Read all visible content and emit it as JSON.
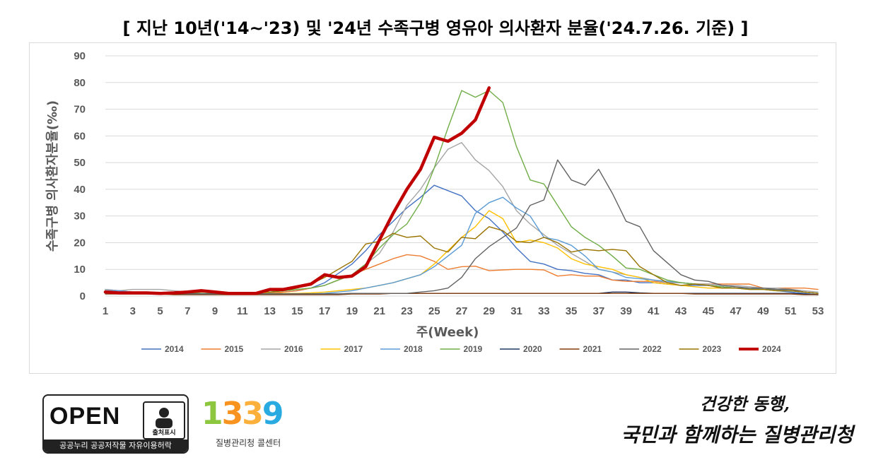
{
  "page": {
    "title": "[ 지난 10년('14~'23) 및 '24년 수족구병 영유아 의사환자 분율('24.7.26. 기준) ]"
  },
  "chart_data": {
    "type": "line",
    "title": "[ 지난 10년('14~'23) 및 '24년 수족구병 영유아 의사환자 분율('24.7.26. 기준) ]",
    "xlabel": "주(Week)",
    "ylabel": "수족구병 의사환자분율(‰)",
    "ylim": [
      0,
      90
    ],
    "yticks": [
      0,
      10,
      20,
      30,
      40,
      50,
      60,
      70,
      80,
      90
    ],
    "xticks": [
      1,
      3,
      5,
      7,
      9,
      11,
      13,
      15,
      17,
      19,
      21,
      23,
      25,
      27,
      29,
      31,
      33,
      35,
      37,
      39,
      41,
      43,
      45,
      47,
      49,
      51,
      53
    ],
    "xlim": [
      1,
      53
    ],
    "grid": true,
    "legend_position": "bottom",
    "series": [
      {
        "name": "2014",
        "color": "#4472C4",
        "width": 1.4,
        "values": [
          2.5,
          2,
          1.5,
          1.5,
          1,
          1,
          1,
          1,
          1,
          0.8,
          0.8,
          1,
          1.2,
          1.5,
          2,
          3,
          5,
          8.5,
          12,
          17,
          23,
          28,
          33,
          37,
          41.5,
          39.5,
          37.5,
          32,
          29,
          24,
          18,
          13,
          12,
          10,
          9.5,
          8.5,
          8,
          6,
          6,
          5,
          5,
          4.5,
          4,
          4,
          4,
          3.5,
          3,
          3,
          2.5,
          2,
          1.5,
          1,
          0.5
        ]
      },
      {
        "name": "2015",
        "color": "#ED7D31",
        "width": 1.4,
        "values": [
          2,
          1.5,
          1.5,
          1.5,
          1,
          1,
          1,
          1,
          1,
          0.8,
          0.8,
          1,
          1,
          1.5,
          2,
          3,
          4,
          6,
          8,
          10,
          12,
          14,
          15.5,
          15,
          13,
          10,
          11,
          11.2,
          9.5,
          9.8,
          10,
          10,
          9.8,
          7.5,
          8,
          7.5,
          7.5,
          6,
          5.5,
          5.5,
          5.5,
          5,
          5,
          4.5,
          4.5,
          4.5,
          4.5,
          4.5,
          3,
          3,
          3,
          3,
          2.5
        ]
      },
      {
        "name": "2016",
        "color": "#A5A5A5",
        "width": 1.4,
        "values": [
          2.5,
          2,
          2.5,
          2.5,
          2.5,
          2,
          1.5,
          1,
          1,
          1,
          1,
          1.2,
          1.5,
          2,
          2.5,
          3,
          4,
          6,
          8,
          12,
          16,
          24,
          34,
          40,
          48,
          55,
          57.5,
          51,
          47,
          41,
          32,
          27,
          23,
          19,
          16,
          13,
          10,
          9,
          8,
          7,
          6,
          5,
          5,
          4.5,
          4.5,
          4,
          4,
          3.5,
          3,
          3,
          2.5,
          2,
          1.5
        ]
      },
      {
        "name": "2017",
        "color": "#FFC000",
        "width": 1.4,
        "values": [
          1.5,
          1.5,
          1.5,
          1.5,
          1.2,
          1,
          1,
          1,
          1,
          0.8,
          0.8,
          0.8,
          1,
          1,
          1,
          1.2,
          1.5,
          2,
          2.5,
          3,
          4,
          5,
          6.5,
          8,
          12,
          17,
          22,
          26,
          32,
          29,
          20,
          21,
          20,
          18,
          14,
          12,
          11,
          10,
          8,
          7,
          5,
          4.5,
          4,
          3.5,
          3,
          3,
          3,
          2.5,
          2.5,
          2,
          2,
          1.5,
          1
        ]
      },
      {
        "name": "2018",
        "color": "#5B9BD5",
        "width": 1.4,
        "values": [
          2,
          2,
          1.5,
          1.5,
          1.2,
          1,
          1,
          1,
          1,
          0.8,
          0.8,
          0.8,
          0.8,
          0.8,
          0.8,
          0.8,
          1,
          1.5,
          2,
          3,
          4,
          5,
          6.5,
          8,
          11,
          15,
          19,
          31,
          35,
          37,
          33,
          30,
          22,
          21,
          19,
          15,
          10,
          9,
          7,
          6.5,
          6,
          5.5,
          5,
          4.5,
          4,
          3.5,
          3,
          3,
          2.5,
          2.5,
          2,
          1.5,
          1
        ]
      },
      {
        "name": "2019",
        "color": "#70AD47",
        "width": 1.4,
        "values": [
          1.5,
          1.5,
          1.5,
          1.5,
          1.2,
          1,
          1,
          1,
          1,
          1,
          1,
          1.2,
          1.5,
          2,
          2.5,
          3,
          4,
          6,
          8,
          12,
          18,
          23,
          27,
          35,
          48,
          63,
          77,
          74.5,
          77,
          72.5,
          56,
          43.5,
          42,
          34,
          26,
          22,
          19,
          15,
          10.5,
          10,
          8,
          6,
          5,
          4.5,
          4,
          3.5,
          3,
          2.5,
          2.5,
          2,
          2,
          1.5,
          1
        ]
      },
      {
        "name": "2020",
        "color": "#1F3864",
        "width": 1.4,
        "values": [
          1.5,
          1,
          1,
          1,
          1,
          0.8,
          0.8,
          0.8,
          0.8,
          0.8,
          0.8,
          0.8,
          0.8,
          0.8,
          0.8,
          0.8,
          0.8,
          0.8,
          1,
          1,
          1,
          1,
          1,
          1,
          1,
          1,
          1,
          1,
          1,
          1,
          1,
          1,
          1,
          1,
          1,
          1,
          1,
          1.5,
          1.5,
          1.2,
          1,
          1,
          1,
          1,
          1,
          1,
          1,
          1,
          1,
          1,
          1,
          0.8,
          0.5
        ]
      },
      {
        "name": "2021",
        "color": "#843C0C",
        "width": 1.4,
        "values": [
          0.8,
          0.8,
          0.8,
          0.8,
          0.8,
          0.5,
          0.5,
          0.5,
          0.5,
          0.5,
          0.5,
          0.5,
          0.5,
          0.5,
          0.5,
          0.5,
          0.5,
          0.5,
          0.8,
          0.8,
          0.8,
          1,
          1,
          1,
          1,
          1,
          1,
          1,
          1,
          1,
          1,
          1,
          1,
          1,
          1,
          1,
          1,
          1,
          1,
          1,
          1,
          1,
          1,
          0.8,
          0.8,
          0.8,
          0.8,
          0.8,
          0.8,
          0.8,
          0.8,
          0.5,
          0.5
        ]
      },
      {
        "name": "2022",
        "color": "#636363",
        "width": 1.4,
        "values": [
          1,
          1,
          1,
          1,
          1,
          1,
          0.8,
          0.8,
          0.8,
          0.8,
          0.8,
          0.8,
          0.8,
          0.8,
          0.8,
          0.8,
          0.8,
          0.8,
          1,
          1,
          1,
          1,
          1,
          1.5,
          2,
          3,
          7,
          14,
          18.5,
          22,
          25.5,
          34,
          36,
          51,
          43.5,
          41.5,
          47.5,
          38.5,
          28,
          26,
          17,
          12.5,
          8,
          6,
          5.5,
          4,
          3.5,
          3,
          3,
          2.5,
          2.5,
          1.5,
          1
        ]
      },
      {
        "name": "2023",
        "color": "#997300",
        "width": 1.4,
        "values": [
          1.2,
          1.2,
          1.2,
          1.2,
          1.2,
          1.2,
          1.2,
          1.5,
          1.5,
          1.2,
          1.2,
          1.2,
          1.5,
          2,
          3,
          4.5,
          7,
          10,
          13,
          19.5,
          20.5,
          23.5,
          22,
          22.5,
          18,
          16.5,
          22,
          21.5,
          26,
          24.5,
          20.5,
          20,
          22,
          20,
          16.5,
          17.5,
          17,
          17.5,
          17,
          11,
          8,
          5,
          4,
          4.5,
          4,
          3,
          3,
          2.5,
          2.5,
          2,
          2,
          1.5,
          1
        ]
      },
      {
        "name": "2024",
        "color": "#C00000",
        "width": 4.5,
        "values": [
          1.5,
          1.2,
          1.2,
          1.2,
          1,
          1.2,
          1.5,
          2,
          1.5,
          1,
          1,
          1,
          2.5,
          2.5,
          3.5,
          4.5,
          8,
          7,
          7.5,
          11,
          21,
          31,
          40,
          47.5,
          59.5,
          58,
          61,
          66,
          78
        ]
      }
    ]
  },
  "footer": {
    "open_text": "OPEN",
    "badge_label": "출처표시",
    "open_bottom": "공공누리 공공저작물 자유이용허락",
    "logo_number": "1339",
    "logo_caption": "질병관리청 콜센터",
    "slogan_line1": "건강한 동행,",
    "slogan_line2": "국민과 함께하는 질병관리청"
  }
}
